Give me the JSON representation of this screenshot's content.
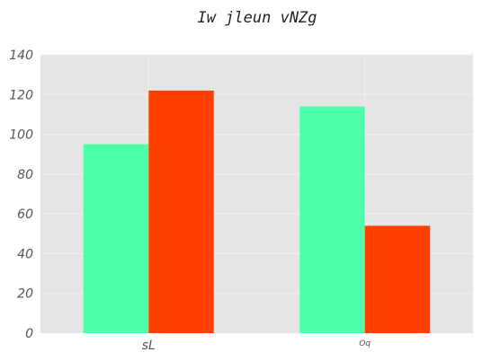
{
  "chart_data": {
    "type": "bar",
    "title": "Iw jleun vNZg",
    "xlabel": "",
    "ylabel": "",
    "categories": [
      "sL",
      "Oq"
    ],
    "series": [
      {
        "color": "#4dffa6",
        "values": [
          95,
          114
        ]
      },
      {
        "color": "#ff4000",
        "values": [
          122,
          54
        ]
      }
    ],
    "ylim": [
      0,
      140
    ],
    "yticks": [
      0,
      20,
      40,
      60,
      80,
      100,
      120,
      140
    ],
    "grid": true,
    "legend": "none",
    "background": "#e5e5e5",
    "gridcolor": "#f2f2f2"
  }
}
